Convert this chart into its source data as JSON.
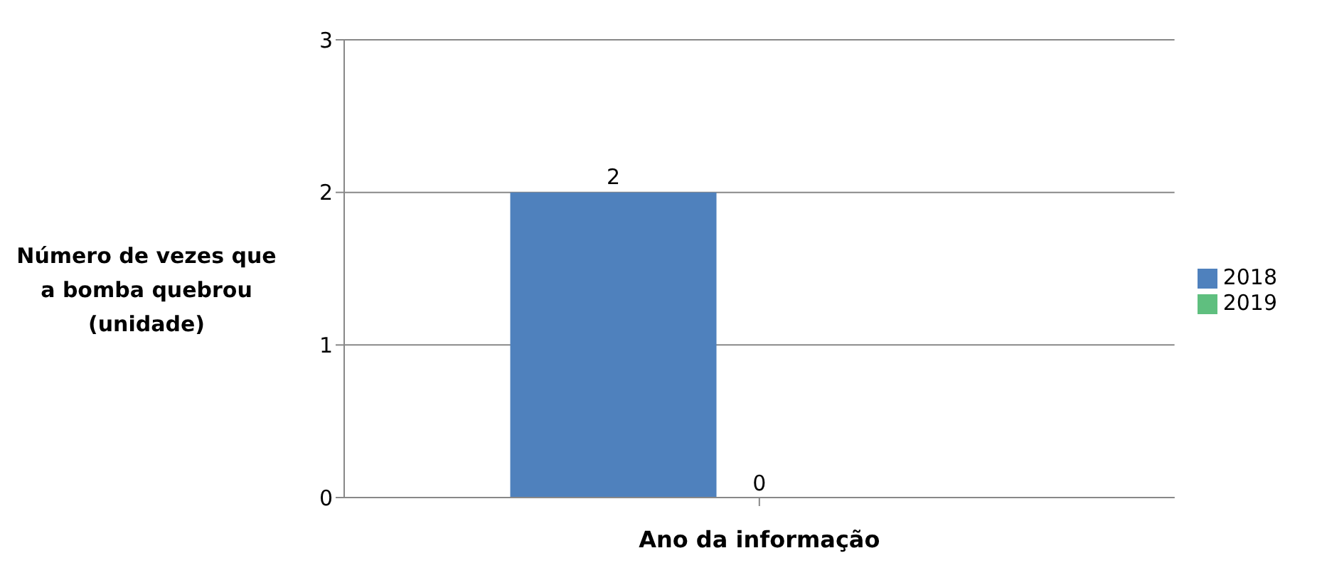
{
  "chart_data": {
    "type": "bar",
    "xlabel": "Ano da informação",
    "ylabel": "Número de vezes que a bomba quebrou (unidade)",
    "categories": [
      null
    ],
    "series": [
      {
        "name": "2018",
        "color": "#4f81bd",
        "values": [
          2
        ]
      },
      {
        "name": "2019",
        "color": "#5fbf7f",
        "values": [
          0
        ]
      }
    ],
    "ylim": [
      0,
      3
    ],
    "yticks": [
      0,
      1,
      2,
      3
    ],
    "grid": "y",
    "legend": "right",
    "data_labels": true
  }
}
